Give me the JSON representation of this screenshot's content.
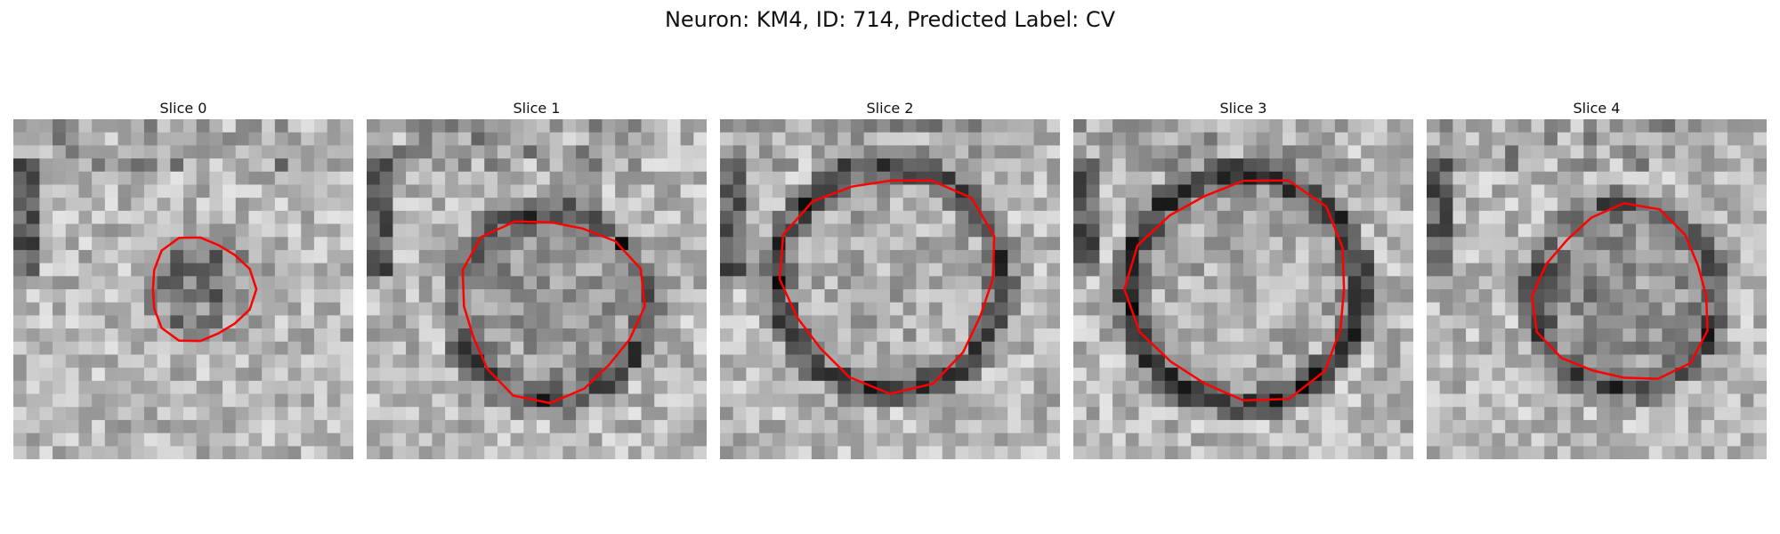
{
  "figure": {
    "title": "Neuron: KM4, ID: 714, Predicted Label: CV"
  },
  "slices": [
    {
      "label": "Slice 0",
      "seed": 11,
      "radius": 0.16,
      "center": [
        0.55,
        0.5
      ],
      "ring_dark": 0.15,
      "inner": 0.3
    },
    {
      "label": "Slice 1",
      "seed": 23,
      "radius": 0.28,
      "center": [
        0.54,
        0.55
      ],
      "ring_dark": 0.55,
      "inner": 0.15
    },
    {
      "label": "Slice 2",
      "seed": 37,
      "radius": 0.33,
      "center": [
        0.5,
        0.47
      ],
      "ring_dark": 0.6,
      "inner": 0.05
    },
    {
      "label": "Slice 3",
      "seed": 41,
      "radius": 0.34,
      "center": [
        0.5,
        0.5
      ],
      "ring_dark": 0.7,
      "inner": 0.05
    },
    {
      "label": "Slice 4",
      "seed": 53,
      "radius": 0.27,
      "center": [
        0.58,
        0.52
      ],
      "ring_dark": 0.55,
      "inner": 0.2
    }
  ],
  "colors": {
    "contour": "#ff0000"
  }
}
